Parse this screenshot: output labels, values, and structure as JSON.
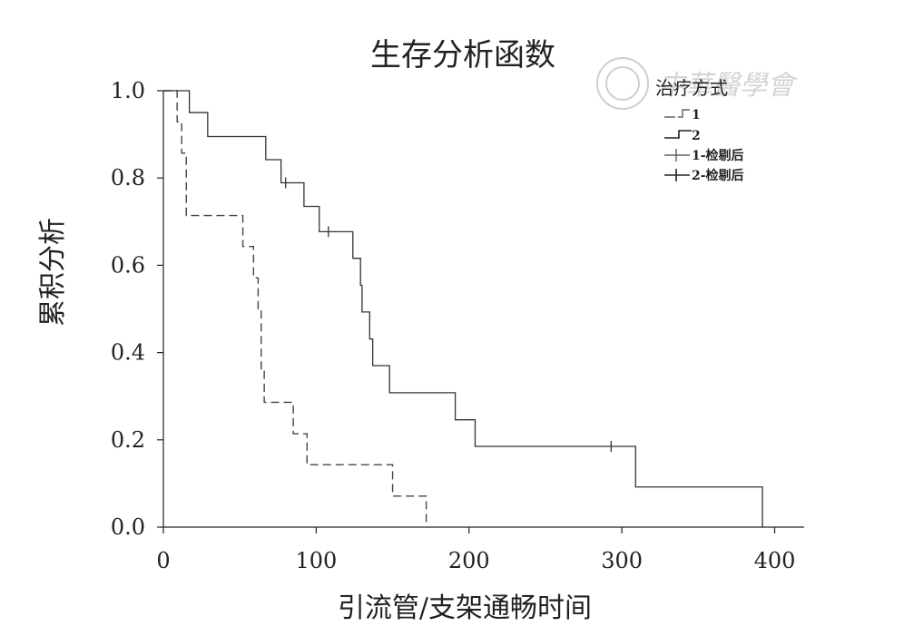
{
  "chart_data": {
    "type": "line",
    "subtype": "kaplan-meier step",
    "title": "生存分析函数",
    "xlabel": "引流管/支架通畅时间",
    "ylabel": "累积分析",
    "xlim": [
      0,
      420
    ],
    "ylim": [
      0,
      1.0
    ],
    "x_ticks": [
      0,
      100,
      200,
      300,
      400
    ],
    "y_ticks": [
      0.0,
      0.2,
      0.4,
      0.6,
      0.8,
      1.0
    ],
    "y_tick_labels": [
      "0.0",
      "0.2",
      "0.4",
      "0.6",
      "0.8",
      "1.0"
    ],
    "grid": false,
    "legend": {
      "title": "治疗方式",
      "position": "top-right",
      "entries": [
        "1",
        "2",
        "1-检剔后",
        "2-检剔后"
      ]
    },
    "series": [
      {
        "name": "1",
        "style": "dashed",
        "color": "#444444",
        "steps": [
          [
            0,
            1.0
          ],
          [
            9,
            0.929
          ],
          [
            12,
            0.857
          ],
          [
            15,
            0.714
          ],
          [
            52,
            0.643
          ],
          [
            59,
            0.571
          ],
          [
            62,
            0.5
          ],
          [
            64,
            0.357
          ],
          [
            66,
            0.286
          ],
          [
            85,
            0.214
          ],
          [
            94,
            0.143
          ],
          [
            150,
            0.071
          ],
          [
            172,
            0.0
          ]
        ],
        "censored": []
      },
      {
        "name": "2",
        "style": "solid",
        "color": "#333333",
        "steps": [
          [
            0,
            1.0
          ],
          [
            17,
            0.95
          ],
          [
            29,
            0.895
          ],
          [
            67,
            0.842
          ],
          [
            77,
            0.789
          ],
          [
            92,
            0.735
          ],
          [
            102,
            0.677
          ],
          [
            124,
            0.616
          ],
          [
            129,
            0.554
          ],
          [
            130,
            0.493
          ],
          [
            135,
            0.431
          ],
          [
            137,
            0.37
          ],
          [
            148,
            0.308
          ],
          [
            191,
            0.246
          ],
          [
            204,
            0.185
          ],
          [
            309,
            0.092
          ],
          [
            392,
            0.0
          ]
        ],
        "censored": [
          [
            80,
            0.789
          ],
          [
            108,
            0.677
          ],
          [
            293,
            0.185
          ]
        ]
      }
    ]
  },
  "watermark": {
    "text": "中華醫學會"
  }
}
